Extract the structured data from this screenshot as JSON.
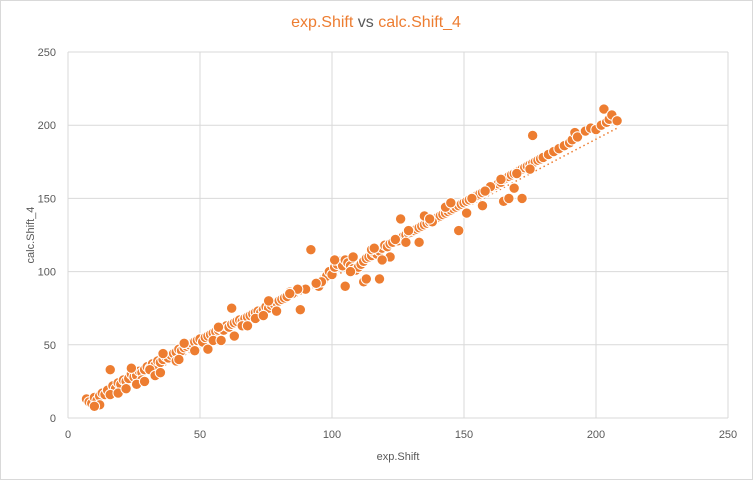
{
  "chart_data": {
    "type": "scatter",
    "title": {
      "x_name": "exp.Shift",
      "joiner": " vs ",
      "y_name": "calc.Shift_4"
    },
    "xlabel": "exp.Shift",
    "ylabel": "calc.Shift_4",
    "xlim": [
      0,
      250
    ],
    "ylim": [
      0,
      250
    ],
    "x_ticks": [
      "0",
      "50",
      "100",
      "150",
      "200",
      "250"
    ],
    "y_ticks": [
      "0",
      "50",
      "100",
      "150",
      "200",
      "250"
    ],
    "grid": true,
    "trendline": {
      "type": "linear",
      "style": "dotted",
      "from": [
        8,
        9
      ],
      "to": [
        208,
        198
      ]
    },
    "colors": {
      "marker": "#ED7D31",
      "marker_edge": "#ffffff",
      "title_accent": "#ED7D31",
      "gridline": "#d9d9d9",
      "axis_text": "#595959"
    },
    "series": [
      {
        "x": [
          7,
          8,
          9,
          10,
          11,
          12,
          13,
          14,
          15,
          16,
          17,
          18,
          19,
          20,
          16,
          21,
          22,
          23,
          24,
          25,
          26,
          27,
          28,
          29,
          30,
          31,
          32,
          33,
          34,
          35,
          36,
          37,
          38,
          39,
          40,
          41,
          42,
          43,
          44,
          45,
          46,
          47,
          48,
          49,
          50,
          51,
          52,
          53,
          54,
          55,
          56,
          57,
          58,
          59,
          60,
          61,
          62,
          63,
          64,
          65,
          66,
          67,
          68,
          69,
          70,
          71,
          72,
          73,
          74,
          75,
          76,
          77,
          78,
          79,
          80,
          81,
          82,
          83,
          84,
          85,
          88,
          90,
          92,
          95,
          97,
          98,
          99,
          100,
          101,
          102,
          103,
          104,
          105,
          106,
          107,
          108,
          109,
          110,
          111,
          112,
          113,
          114,
          115,
          116,
          117,
          118,
          119,
          120,
          121,
          122,
          123,
          124,
          125,
          126,
          127,
          128,
          129,
          130,
          131,
          132,
          133,
          134,
          135,
          136,
          137,
          138,
          139,
          140,
          141,
          142,
          143,
          144,
          145,
          146,
          147,
          148,
          149,
          150,
          151,
          152,
          153,
          154,
          155,
          156,
          157,
          158,
          159,
          160,
          161,
          162,
          163,
          164,
          165,
          166,
          167,
          168,
          169,
          170,
          171,
          172,
          173,
          174,
          175,
          176,
          177,
          178,
          179,
          180,
          182,
          184,
          186,
          188,
          190,
          191,
          192,
          193,
          196,
          198,
          200,
          202,
          203,
          204,
          205,
          206,
          208,
          62,
          115,
          105,
          112,
          118,
          122,
          128,
          135,
          148,
          165,
          172,
          24,
          28,
          31,
          36,
          44,
          53,
          57,
          66,
          76,
          87,
          96,
          108,
          113,
          119,
          126,
          133,
          138,
          143,
          151,
          157,
          160,
          167,
          170,
          175,
          12,
          19,
          26,
          33,
          41,
          48,
          55,
          63,
          71,
          79,
          84,
          94,
          101,
          107,
          116,
          124,
          129,
          137,
          145,
          153,
          158,
          164,
          169,
          176,
          10,
          22,
          29,
          35,
          42,
          58,
          68,
          74
        ],
        "y": [
          13,
          11,
          10,
          14,
          12,
          15,
          17,
          16,
          19,
          33,
          22,
          20,
          24,
          23,
          16,
          26,
          25,
          27,
          30,
          28,
          29,
          32,
          31,
          33,
          35,
          34,
          37,
          36,
          39,
          38,
          40,
          42,
          41,
          43,
          44,
          45,
          47,
          46,
          48,
          49,
          50,
          51,
          52,
          53,
          54,
          52,
          55,
          56,
          57,
          58,
          59,
          60,
          61,
          60,
          63,
          62,
          64,
          65,
          66,
          67,
          66,
          68,
          69,
          70,
          71,
          72,
          73,
          72,
          74,
          76,
          75,
          77,
          78,
          79,
          80,
          81,
          82,
          83,
          86,
          85,
          74,
          88,
          115,
          90,
          95,
          97,
          100,
          98,
          103,
          105,
          107,
          104,
          108,
          106,
          104,
          102,
          101,
          103,
          105,
          107,
          109,
          110,
          111,
          113,
          112,
          114,
          116,
          118,
          117,
          119,
          120,
          122,
          121,
          123,
          124,
          125,
          126,
          127,
          128,
          129,
          130,
          131,
          132,
          133,
          134,
          135,
          136,
          137,
          138,
          139,
          140,
          141,
          142,
          143,
          144,
          145,
          146,
          147,
          148,
          149,
          150,
          151,
          152,
          153,
          154,
          155,
          156,
          157,
          158,
          159,
          160,
          161,
          163,
          164,
          165,
          166,
          167,
          168,
          169,
          170,
          171,
          172,
          173,
          174,
          175,
          176,
          177,
          178,
          180,
          182,
          184,
          186,
          188,
          190,
          195,
          192,
          196,
          198,
          197,
          200,
          211,
          202,
          204,
          207,
          203,
          75,
          115,
          90,
          93,
          95,
          110,
          120,
          138,
          128,
          148,
          150,
          34,
          26,
          33,
          44,
          51,
          47,
          62,
          63,
          80,
          88,
          93,
          110,
          95,
          108,
          136,
          120,
          134,
          144,
          140,
          145,
          158,
          150,
          167,
          170,
          9,
          17,
          23,
          29,
          39,
          46,
          53,
          56,
          68,
          73,
          85,
          92,
          108,
          100,
          116,
          122,
          128,
          136,
          147,
          150,
          155,
          163,
          157,
          193,
          8,
          20,
          25,
          31,
          40,
          53,
          63,
          70
        ]
      }
    ]
  }
}
